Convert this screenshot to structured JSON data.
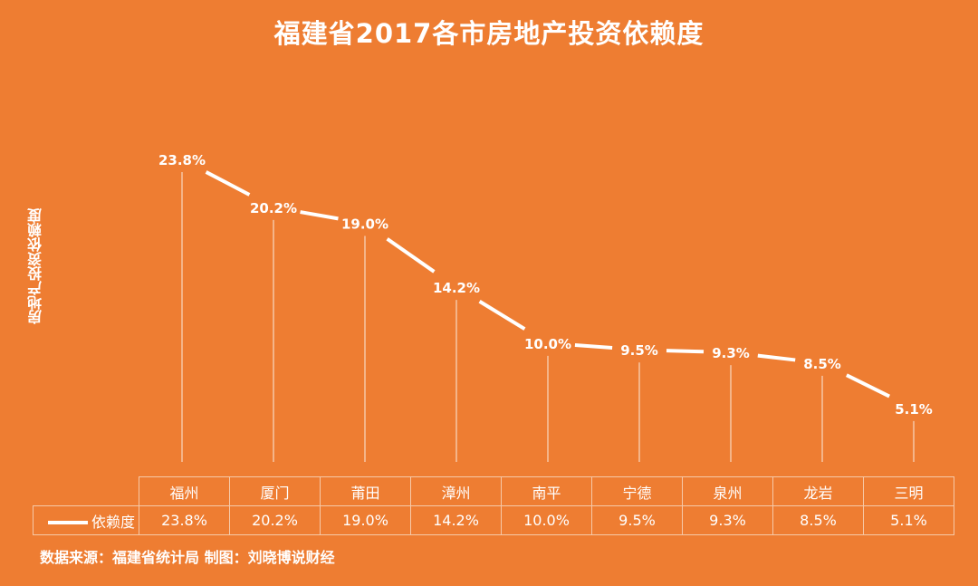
{
  "chart_data": {
    "type": "line",
    "title": "福建省2017各市房地产投资依赖度",
    "ylabel": "房地产投资依赖度",
    "categories": [
      "福州",
      "厦门",
      "莆田",
      "漳州",
      "南平",
      "宁德",
      "泉州",
      "龙岩",
      "三明"
    ],
    "series": [
      {
        "name": "依赖度",
        "values": [
          23.8,
          20.2,
          19.0,
          14.2,
          10.0,
          9.5,
          9.3,
          8.5,
          5.1
        ],
        "labels": [
          "23.8%",
          "20.2%",
          "19.0%",
          "14.2%",
          "10.0%",
          "9.5%",
          "9.3%",
          "8.5%",
          "5.1%"
        ]
      }
    ],
    "ylim": [
      0,
      25
    ],
    "grid": false,
    "legend": "bottom-left data table",
    "colors": {
      "background": "#EE7D32",
      "line": "#FFFFFF"
    }
  },
  "source": "数据来源：福建省统计局 制图：刘晓博说财经"
}
